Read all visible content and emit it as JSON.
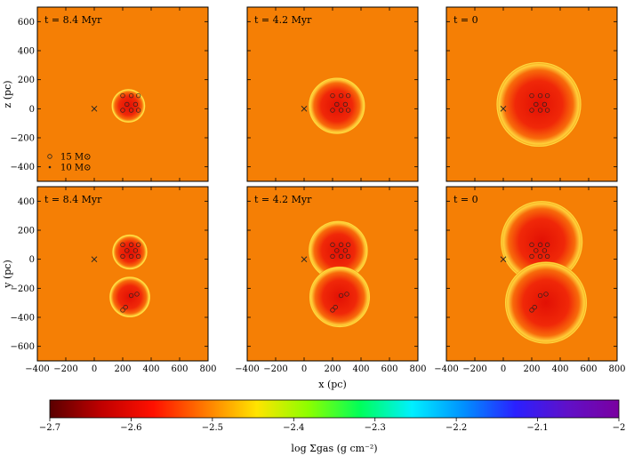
{
  "chart_data": {
    "type": "heatmap",
    "background_color": "#f57f05",
    "x_axis": {
      "label": "x (pc)",
      "ticks": [
        "−400",
        "−200",
        "0",
        "200",
        "400",
        "600",
        "800"
      ],
      "values": [
        -400,
        -200,
        0,
        200,
        400,
        600,
        800
      ],
      "range": [
        -400,
        800
      ]
    },
    "z_axis": {
      "label": "z (pc)",
      "ticks": [
        "600",
        "400",
        "200",
        "0",
        "−200",
        "−400"
      ],
      "values": [
        600,
        400,
        200,
        0,
        -200,
        -400
      ],
      "range": [
        -500,
        700
      ]
    },
    "y_axis": {
      "label": "y (pc)",
      "ticks": [
        "400",
        "200",
        "0",
        "−200",
        "−400",
        "−600"
      ],
      "values": [
        400,
        200,
        0,
        -200,
        -400,
        -600
      ],
      "range": [
        -700,
        500
      ]
    },
    "panels": [
      {
        "row": "top",
        "time": "t = 8.4 Myr",
        "bubbles": [
          {
            "cx": 240,
            "cy": 20,
            "r": 120
          }
        ]
      },
      {
        "row": "top",
        "time": "t = 4.2 Myr",
        "bubbles": [
          {
            "cx": 230,
            "cy": 20,
            "r": 200
          }
        ]
      },
      {
        "row": "top",
        "time": "t = 0",
        "bubbles": [
          {
            "cx": 250,
            "cy": 30,
            "r": 300
          }
        ]
      },
      {
        "row": "bottom",
        "time": "t = 8.4 Myr",
        "bubbles": [
          {
            "cx": 250,
            "cy": 50,
            "r": 125
          },
          {
            "cx": 250,
            "cy": -260,
            "r": 145
          }
        ]
      },
      {
        "row": "bottom",
        "time": "t = 4.2 Myr",
        "bubbles": [
          {
            "cx": 240,
            "cy": 60,
            "r": 210
          },
          {
            "cx": 250,
            "cy": -260,
            "r": 215
          }
        ]
      },
      {
        "row": "bottom",
        "time": "t = 0",
        "bubbles": [
          {
            "cx": 270,
            "cy": 120,
            "r": 290
          },
          {
            "cx": 300,
            "cy": -300,
            "r": 290
          }
        ]
      }
    ],
    "legend": {
      "items": [
        {
          "symbol": "open-circle",
          "label": "15 M⊙"
        },
        {
          "symbol": "dot",
          "label": "10 M⊙"
        }
      ],
      "placement": "bottom-left of top-left panel"
    },
    "colorbar": {
      "label": "log Σgas (g cm⁻²)",
      "range": [
        -2.7,
        -2.0
      ],
      "ticks": [
        "−2.7",
        "−2.6",
        "−2.5",
        "−2.4",
        "−2.3",
        "−2.2",
        "−2.1",
        "−2"
      ],
      "tick_values": [
        -2.7,
        -2.6,
        -2.5,
        -2.4,
        -2.3,
        -2.2,
        -2.1,
        -2.0
      ],
      "colormap": [
        "#5a0000",
        "#c00000",
        "#ff1000",
        "#ff7a00",
        "#ffe400",
        "#8cff00",
        "#00ff5a",
        "#00f0ff",
        "#0090ff",
        "#2a20ff",
        "#6010c8",
        "#7a00a0"
      ]
    }
  }
}
